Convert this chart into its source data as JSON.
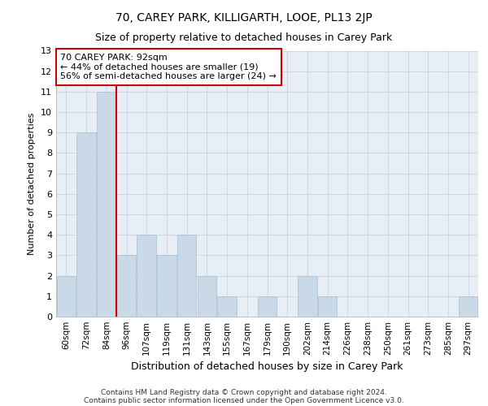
{
  "title1": "70, CAREY PARK, KILLIGARTH, LOOE, PL13 2JP",
  "title2": "Size of property relative to detached houses in Carey Park",
  "xlabel": "Distribution of detached houses by size in Carey Park",
  "ylabel": "Number of detached properties",
  "categories": [
    "60sqm",
    "72sqm",
    "84sqm",
    "96sqm",
    "107sqm",
    "119sqm",
    "131sqm",
    "143sqm",
    "155sqm",
    "167sqm",
    "179sqm",
    "190sqm",
    "202sqm",
    "214sqm",
    "226sqm",
    "238sqm",
    "250sqm",
    "261sqm",
    "273sqm",
    "285sqm",
    "297sqm"
  ],
  "values": [
    2,
    9,
    11,
    3,
    4,
    3,
    4,
    2,
    1,
    0,
    1,
    0,
    2,
    1,
    0,
    0,
    0,
    0,
    0,
    0,
    1
  ],
  "bar_color": "#c9d9e8",
  "bar_edge_color": "#a8bfd0",
  "vline_x": 2.5,
  "vline_color": "#cc0000",
  "annotation_text": "70 CAREY PARK: 92sqm\n← 44% of detached houses are smaller (19)\n56% of semi-detached houses are larger (24) →",
  "annotation_box_color": "#ffffff",
  "annotation_box_edge": "#cc0000",
  "ylim": [
    0,
    13
  ],
  "yticks": [
    0,
    1,
    2,
    3,
    4,
    5,
    6,
    7,
    8,
    9,
    10,
    11,
    12,
    13
  ],
  "background_color": "#e8eef5",
  "grid_color": "#c5cdd8",
  "footer1": "Contains HM Land Registry data © Crown copyright and database right 2024.",
  "footer2": "Contains public sector information licensed under the Open Government Licence v3.0.",
  "title1_fontsize": 10,
  "title2_fontsize": 9,
  "ylabel_fontsize": 8,
  "xlabel_fontsize": 9,
  "tick_fontsize": 8,
  "xtick_fontsize": 7.5,
  "annotation_fontsize": 8
}
